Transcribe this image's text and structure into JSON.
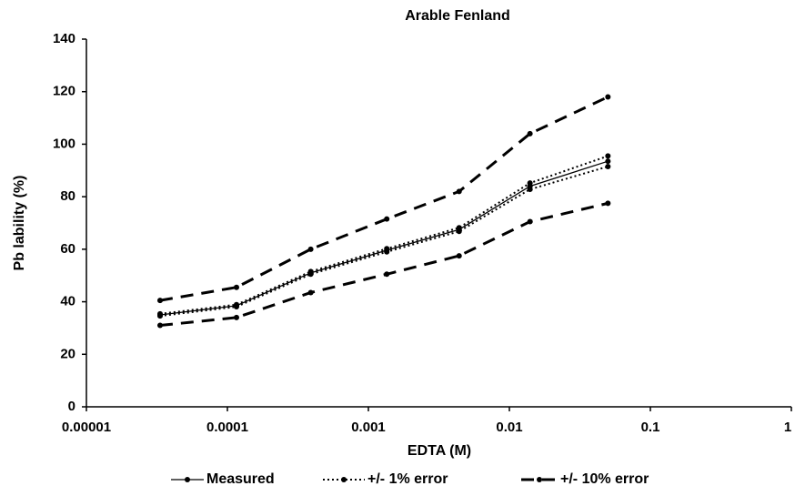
{
  "chart_data": {
    "type": "line",
    "title": "Arable Fenland",
    "xlabel": "EDTA (M)",
    "ylabel": "Pb lability (%)",
    "xscale": "log",
    "x": [
      3.33e-05,
      0.000116,
      0.00039,
      0.00135,
      0.0044,
      0.014,
      0.05
    ],
    "xlim": [
      1e-05,
      1
    ],
    "xticks": [
      {
        "value": 1e-05,
        "label": "0.00001"
      },
      0.0001,
      0.001,
      0.01,
      0.1,
      1
    ],
    "ylim": [
      0,
      140
    ],
    "yticks": [
      0,
      20,
      40,
      60,
      80,
      100,
      120,
      140
    ],
    "grid": false,
    "legend": "bottom",
    "series": [
      {
        "name": "Measured",
        "color": "#000000",
        "style": "solid",
        "values": [
          35,
          38.5,
          51,
          59.6,
          67.5,
          84,
          93.5
        ]
      },
      {
        "name": "+/- 1% error",
        "color": "#000000",
        "style": "dotted",
        "upper": [
          35.4,
          38.9,
          51.5,
          60.2,
          68.2,
          85.2,
          95.5
        ],
        "lower": [
          34.6,
          38.1,
          50.5,
          59,
          66.8,
          82.8,
          91.5
        ]
      },
      {
        "name": "+/- 10% error",
        "color": "#000000",
        "style": "dashed",
        "upper": [
          40.5,
          45.5,
          60,
          71.5,
          82,
          104,
          118
        ],
        "lower": [
          31,
          34,
          43.5,
          50.5,
          57.5,
          70.5,
          77.5
        ]
      }
    ]
  }
}
